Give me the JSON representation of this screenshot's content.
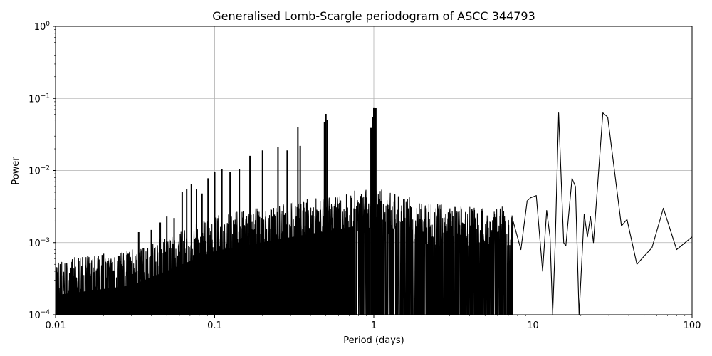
{
  "chart_data": {
    "type": "line",
    "title": "Generalised Lomb-Scargle periodogram of ASCC 344793",
    "xlabel": "Period (days)",
    "ylabel": "Power",
    "xscale": "log",
    "yscale": "log",
    "xlim": [
      0.01,
      100
    ],
    "ylim": [
      0.0001,
      1
    ],
    "grid": true,
    "legend": null,
    "x_ticks": [
      {
        "value": 0.01,
        "label": "0.01"
      },
      {
        "value": 0.1,
        "label": "0.1"
      },
      {
        "value": 1,
        "label": "1"
      },
      {
        "value": 10,
        "label": "10"
      },
      {
        "value": 100,
        "label": "100"
      }
    ],
    "y_ticks": [
      {
        "value": 0.0001,
        "base": "10",
        "exp": "−4"
      },
      {
        "value": 0.001,
        "base": "10",
        "exp": "−3"
      },
      {
        "value": 0.01,
        "base": "10",
        "exp": "−2"
      },
      {
        "value": 0.1,
        "base": "10",
        "exp": "−1"
      },
      {
        "value": 1,
        "base": "10",
        "exp": "0"
      }
    ],
    "series": [
      {
        "name": "periodogram",
        "color": "#000000",
        "alias_peaks": [
          {
            "period": 0.0125,
            "power": 0.00045
          },
          {
            "period": 0.0167,
            "power": 0.00035
          },
          {
            "period": 0.02,
            "power": 0.0007
          },
          {
            "period": 0.025,
            "power": 0.00065
          },
          {
            "period": 0.0286,
            "power": 0.0007
          },
          {
            "period": 0.0333,
            "power": 0.0014
          },
          {
            "period": 0.04,
            "power": 0.0015
          },
          {
            "period": 0.0455,
            "power": 0.0019
          },
          {
            "period": 0.05,
            "power": 0.0023
          },
          {
            "period": 0.0556,
            "power": 0.0022
          },
          {
            "period": 0.0625,
            "power": 0.005
          },
          {
            "period": 0.0667,
            "power": 0.0055
          },
          {
            "period": 0.0714,
            "power": 0.0065
          },
          {
            "period": 0.0769,
            "power": 0.0055
          },
          {
            "period": 0.0833,
            "power": 0.0048
          },
          {
            "period": 0.0909,
            "power": 0.0078
          },
          {
            "period": 0.1,
            "power": 0.0095
          },
          {
            "period": 0.111,
            "power": 0.0105
          },
          {
            "period": 0.125,
            "power": 0.0095
          },
          {
            "period": 0.1429,
            "power": 0.0105
          },
          {
            "period": 0.1667,
            "power": 0.016
          },
          {
            "period": 0.2,
            "power": 0.019
          },
          {
            "period": 0.25,
            "power": 0.021
          },
          {
            "period": 0.2857,
            "power": 0.019
          },
          {
            "period": 0.3333,
            "power": 0.04
          },
          {
            "period": 0.3448,
            "power": 0.022
          },
          {
            "period": 0.49,
            "power": 0.047
          },
          {
            "period": 0.5,
            "power": 0.061
          },
          {
            "period": 0.51,
            "power": 0.05
          },
          {
            "period": 0.96,
            "power": 0.039
          },
          {
            "period": 0.98,
            "power": 0.055
          },
          {
            "period": 1.0,
            "power": 0.075
          },
          {
            "period": 1.03,
            "power": 0.074
          }
        ],
        "smooth_tail": [
          {
            "period": 7.5,
            "power": 0.002
          },
          {
            "period": 8.4,
            "power": 0.0008
          },
          {
            "period": 9.2,
            "power": 0.0038
          },
          {
            "period": 9.7,
            "power": 0.0042
          },
          {
            "period": 10.5,
            "power": 0.0045
          },
          {
            "period": 11.5,
            "power": 0.0004
          },
          {
            "period": 12.2,
            "power": 0.0028
          },
          {
            "period": 12.8,
            "power": 0.0012
          },
          {
            "period": 13.3,
            "power": 0.0001
          },
          {
            "period": 13.8,
            "power": 0.001
          },
          {
            "period": 14.5,
            "power": 0.063
          },
          {
            "period": 15.6,
            "power": 0.001
          },
          {
            "period": 16.1,
            "power": 0.0009
          },
          {
            "period": 17.6,
            "power": 0.0078
          },
          {
            "period": 18.5,
            "power": 0.006
          },
          {
            "period": 19.5,
            "power": 0.0001
          },
          {
            "period": 21.0,
            "power": 0.0025
          },
          {
            "period": 22.0,
            "power": 0.0012
          },
          {
            "period": 23.0,
            "power": 0.0023
          },
          {
            "period": 24.0,
            "power": 0.001
          },
          {
            "period": 27.5,
            "power": 0.063
          },
          {
            "period": 29.5,
            "power": 0.055
          },
          {
            "period": 33.5,
            "power": 0.006
          },
          {
            "period": 36.0,
            "power": 0.0017
          },
          {
            "period": 39.0,
            "power": 0.0021
          },
          {
            "period": 45.0,
            "power": 0.0005
          },
          {
            "period": 50.0,
            "power": 0.00065
          },
          {
            "period": 56.0,
            "power": 0.00085
          },
          {
            "period": 66.0,
            "power": 0.003
          },
          {
            "period": 80.0,
            "power": 0.0008
          },
          {
            "period": 100.0,
            "power": 0.0012
          }
        ],
        "noise_floor": [
          {
            "period": 0.01,
            "power": 0.00022
          },
          {
            "period": 0.03,
            "power": 0.0003
          },
          {
            "period": 0.1,
            "power": 0.0009
          },
          {
            "period": 0.3,
            "power": 0.0014
          },
          {
            "period": 1.0,
            "power": 0.0022
          },
          {
            "period": 3.0,
            "power": 0.0012
          }
        ]
      }
    ]
  }
}
